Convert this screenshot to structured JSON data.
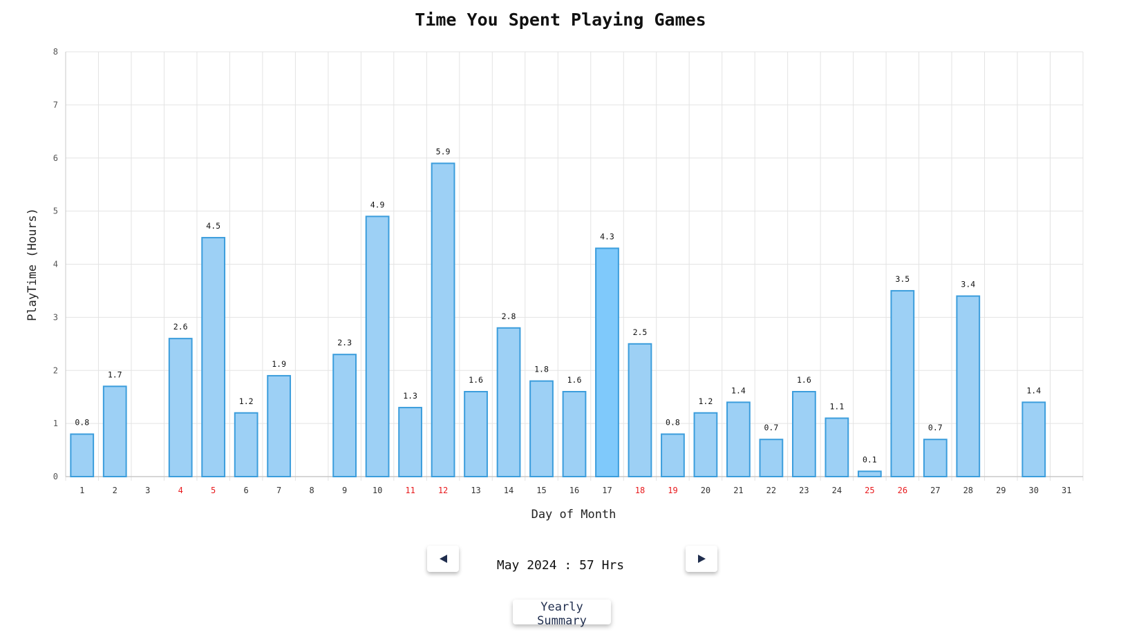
{
  "chart_data": {
    "type": "bar",
    "title": "Time You Spent Playing Games",
    "xlabel": "Day of Month",
    "ylabel": "PlayTime (Hours)",
    "ylim": [
      0,
      8
    ],
    "ytick_step": 1,
    "grid": true,
    "categories": [
      "1",
      "2",
      "3",
      "4",
      "5",
      "6",
      "7",
      "8",
      "9",
      "10",
      "11",
      "12",
      "13",
      "14",
      "15",
      "16",
      "17",
      "18",
      "19",
      "20",
      "21",
      "22",
      "23",
      "24",
      "25",
      "26",
      "27",
      "28",
      "29",
      "30",
      "31"
    ],
    "values": [
      0.8,
      1.7,
      0,
      2.6,
      4.5,
      1.2,
      1.9,
      0,
      2.3,
      4.9,
      1.3,
      5.9,
      1.6,
      2.8,
      1.8,
      1.6,
      4.3,
      2.5,
      0.8,
      1.2,
      1.4,
      0.7,
      1.6,
      1.1,
      0.1,
      3.5,
      0.7,
      3.4,
      0,
      1.4,
      0
    ],
    "highlighted_days": [
      "4",
      "5",
      "11",
      "12",
      "18",
      "19",
      "25",
      "26"
    ],
    "selected_day": "17",
    "colors": {
      "bar_fill": "#9dd0f5",
      "bar_stroke": "#3b9ddc",
      "selected_fill": "#7fc9fb",
      "highlight_label": "#e8191c",
      "grid": "#e3e3e3"
    }
  },
  "controls": {
    "prev_icon": "chevron-left-icon",
    "next_icon": "chevron-right-icon",
    "summary_text": "May 2024 : 57 Hrs",
    "yearly_label": "Yearly Summary"
  }
}
